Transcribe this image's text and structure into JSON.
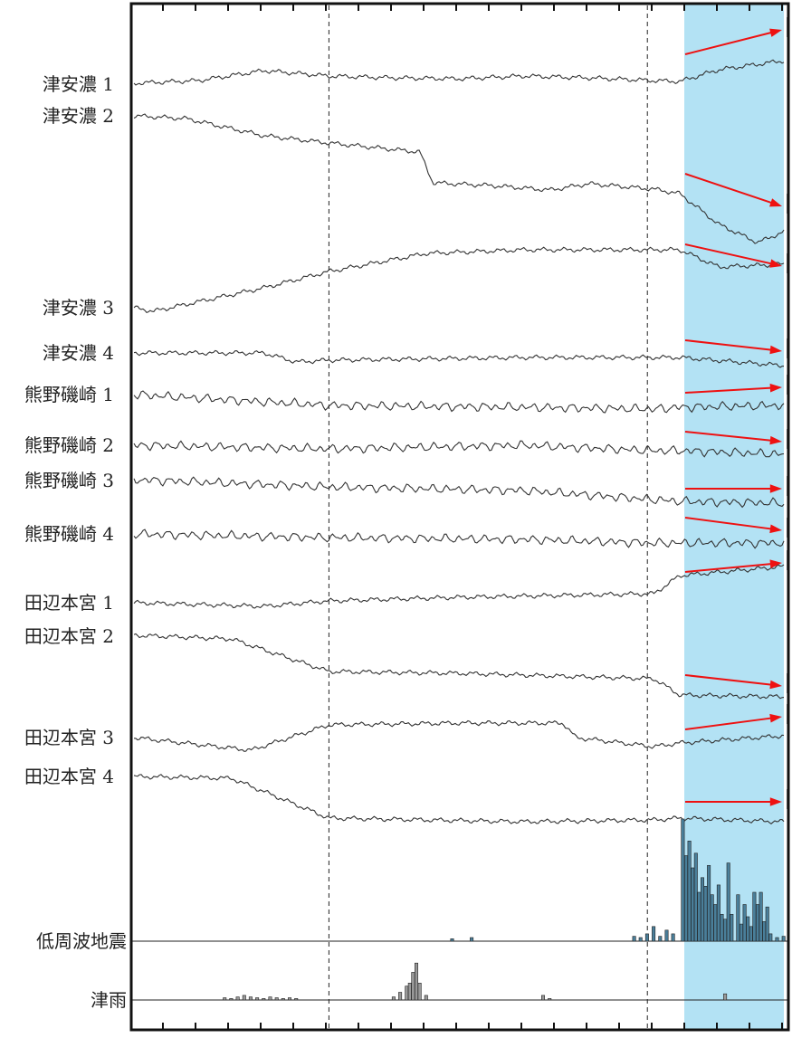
{
  "colors": {
    "highlight": "#b3e2f4",
    "arrow": "#ee1111",
    "trace": "#333333",
    "bar_fill": "#4a7f9a"
  },
  "chart_data": {
    "type": "line",
    "title": "",
    "xlabel": "",
    "ylabel": "",
    "grid": false,
    "x_range": [
      0,
      1
    ],
    "highlight_span": [
      0.845,
      1.0
    ],
    "dashed_markers": [
      0.3,
      0.79
    ],
    "series": [
      {
        "name": "津安濃 1",
        "shape": [
          [
            0,
            0
          ],
          [
            0.1,
            -3
          ],
          [
            0.2,
            -14
          ],
          [
            0.3,
            -8
          ],
          [
            0.4,
            -6
          ],
          [
            0.5,
            -5
          ],
          [
            0.6,
            -8
          ],
          [
            0.7,
            -6
          ],
          [
            0.8,
            -3
          ],
          [
            0.84,
            -2
          ],
          [
            0.9,
            -15
          ],
          [
            1,
            -25
          ]
        ],
        "arrow": "up"
      },
      {
        "name": "津安濃 2",
        "shape": [
          [
            0,
            0
          ],
          [
            0.08,
            3
          ],
          [
            0.2,
            22
          ],
          [
            0.3,
            30
          ],
          [
            0.44,
            40
          ],
          [
            0.46,
            74
          ],
          [
            0.55,
            77
          ],
          [
            0.64,
            82
          ],
          [
            0.7,
            75
          ],
          [
            0.8,
            81
          ],
          [
            0.84,
            86
          ],
          [
            0.9,
            120
          ],
          [
            0.96,
            140
          ],
          [
            1,
            128
          ]
        ],
        "arrow": "down"
      },
      {
        "name": "津安濃 3",
        "shape": [
          [
            0,
            0
          ],
          [
            0.03,
            4
          ],
          [
            0.2,
            -22
          ],
          [
            0.3,
            -40
          ],
          [
            0.45,
            -60
          ],
          [
            0.6,
            -64
          ],
          [
            0.8,
            -64
          ],
          [
            0.84,
            -64
          ],
          [
            0.9,
            -45
          ],
          [
            1,
            -48
          ]
        ],
        "arrow": "down"
      },
      {
        "name": "津安濃 4",
        "shape": [
          [
            0,
            0
          ],
          [
            0.2,
            0
          ],
          [
            0.25,
            10
          ],
          [
            0.3,
            8
          ],
          [
            0.6,
            5
          ],
          [
            0.8,
            5
          ],
          [
            0.84,
            5
          ],
          [
            1,
            14
          ]
        ],
        "arrow": "down"
      },
      {
        "name": "熊野磯崎 1",
        "shape": [
          [
            0,
            0
          ],
          [
            0.3,
            12
          ],
          [
            0.6,
            14
          ],
          [
            0.8,
            16
          ],
          [
            0.84,
            14
          ],
          [
            1,
            12
          ]
        ],
        "arrow": "up"
      },
      {
        "name": "熊野磯崎 2",
        "shape": [
          [
            0,
            0
          ],
          [
            0.3,
            4
          ],
          [
            0.6,
            0
          ],
          [
            0.8,
            6
          ],
          [
            0.84,
            6
          ],
          [
            1,
            10
          ]
        ],
        "arrow": "down"
      },
      {
        "name": "熊野磯崎 3",
        "shape": [
          [
            0,
            0
          ],
          [
            0.3,
            8
          ],
          [
            0.6,
            12
          ],
          [
            0.8,
            22
          ],
          [
            0.84,
            24
          ],
          [
            1,
            26
          ]
        ],
        "arrow": "right"
      },
      {
        "name": "熊野磯崎 4",
        "shape": [
          [
            0,
            0
          ],
          [
            0.3,
            4
          ],
          [
            0.6,
            6
          ],
          [
            0.8,
            10
          ],
          [
            0.84,
            10
          ],
          [
            1,
            10
          ]
        ],
        "arrow": "down"
      },
      {
        "name": "田辺本宮 1",
        "shape": [
          [
            0,
            0
          ],
          [
            0.2,
            4
          ],
          [
            0.3,
            -2
          ],
          [
            0.5,
            -6
          ],
          [
            0.8,
            -10
          ],
          [
            0.84,
            -30
          ],
          [
            1,
            -40
          ]
        ],
        "arrow": "up"
      },
      {
        "name": "田辺本宮 2",
        "shape": [
          [
            0,
            0
          ],
          [
            0.15,
            4
          ],
          [
            0.3,
            40
          ],
          [
            0.5,
            42
          ],
          [
            0.8,
            48
          ],
          [
            0.84,
            66
          ],
          [
            1,
            68
          ]
        ],
        "arrow": "down"
      },
      {
        "name": "田辺本宮 3",
        "shape": [
          [
            0,
            0
          ],
          [
            0.18,
            14
          ],
          [
            0.3,
            -14
          ],
          [
            0.5,
            -16
          ],
          [
            0.66,
            -16
          ],
          [
            0.68,
            0
          ],
          [
            0.8,
            10
          ],
          [
            0.84,
            6
          ],
          [
            1,
            -2
          ]
        ],
        "arrow": "up"
      },
      {
        "name": "田辺本宮 4",
        "shape": [
          [
            0,
            0
          ],
          [
            0.15,
            2
          ],
          [
            0.3,
            46
          ],
          [
            0.6,
            50
          ],
          [
            0.8,
            48
          ],
          [
            0.84,
            46
          ],
          [
            1,
            50
          ]
        ],
        "arrow": "right"
      }
    ],
    "histograms": [
      {
        "name": "低周波地震",
        "values": [
          [
            0.49,
            2
          ],
          [
            0.52,
            3
          ],
          [
            0.77,
            4
          ],
          [
            0.78,
            3
          ],
          [
            0.79,
            6
          ],
          [
            0.8,
            12
          ],
          [
            0.81,
            4
          ],
          [
            0.82,
            9
          ],
          [
            0.83,
            6
          ],
          [
            0.845,
            100
          ],
          [
            0.85,
            70
          ],
          [
            0.855,
            82
          ],
          [
            0.86,
            60
          ],
          [
            0.865,
            72
          ],
          [
            0.87,
            40
          ],
          [
            0.875,
            52
          ],
          [
            0.88,
            45
          ],
          [
            0.885,
            62
          ],
          [
            0.89,
            38
          ],
          [
            0.895,
            30
          ],
          [
            0.9,
            46
          ],
          [
            0.905,
            22
          ],
          [
            0.91,
            18
          ],
          [
            0.915,
            64
          ],
          [
            0.92,
            22
          ],
          [
            0.93,
            38
          ],
          [
            0.935,
            14
          ],
          [
            0.94,
            30
          ],
          [
            0.945,
            20
          ],
          [
            0.95,
            12
          ],
          [
            0.955,
            40
          ],
          [
            0.96,
            30
          ],
          [
            0.965,
            40
          ],
          [
            0.97,
            16
          ],
          [
            0.975,
            28
          ],
          [
            0.98,
            6
          ],
          [
            0.99,
            3
          ],
          [
            1.0,
            4
          ]
        ]
      },
      {
        "name": "津雨",
        "values": [
          [
            0.14,
            3
          ],
          [
            0.15,
            2
          ],
          [
            0.16,
            4
          ],
          [
            0.17,
            6
          ],
          [
            0.18,
            4
          ],
          [
            0.19,
            3
          ],
          [
            0.2,
            2
          ],
          [
            0.21,
            4
          ],
          [
            0.22,
            3
          ],
          [
            0.23,
            2
          ],
          [
            0.24,
            3
          ],
          [
            0.25,
            2
          ],
          [
            0.4,
            4
          ],
          [
            0.41,
            10
          ],
          [
            0.42,
            18
          ],
          [
            0.425,
            22
          ],
          [
            0.43,
            36
          ],
          [
            0.435,
            48
          ],
          [
            0.44,
            22
          ],
          [
            0.45,
            6
          ],
          [
            0.63,
            6
          ],
          [
            0.64,
            2
          ],
          [
            0.91,
            8
          ]
        ]
      }
    ]
  }
}
